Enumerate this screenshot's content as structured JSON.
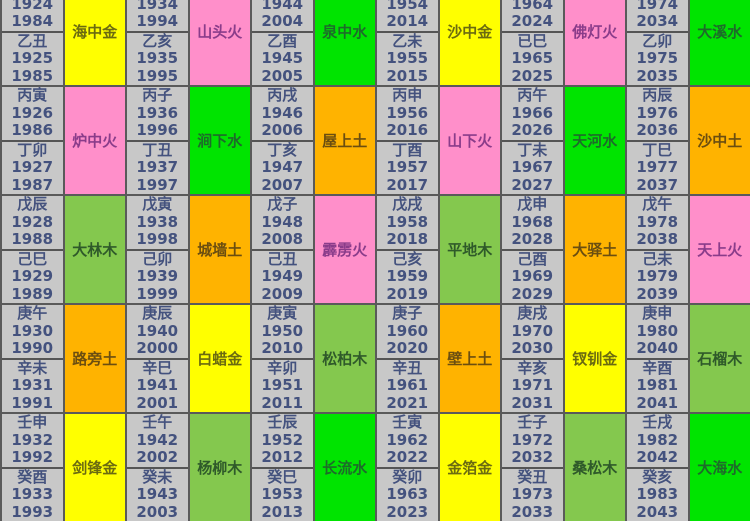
{
  "colors": {
    "金": "#ffff00",
    "火": "#ff8fca",
    "水": "#00e400",
    "土": "#ffb300",
    "木": "#84c84e"
  },
  "text_colors": {
    "金": "#6b6b10",
    "火": "#8a3c8a",
    "水": "#1d6b2a",
    "土": "#6b4e10",
    "木": "#2f5a2a"
  },
  "columns": [
    {
      "blocks": [
        {
          "entries": [
            [
              "甲子",
              "1924",
              "1984"
            ],
            [
              "乙丑",
              "1925",
              "1985"
            ]
          ],
          "nayin": "海中金",
          "element": "金"
        },
        {
          "entries": [
            [
              "丙寅",
              "1926",
              "1986"
            ],
            [
              "丁卯",
              "1927",
              "1987"
            ]
          ],
          "nayin": "炉中火",
          "element": "火"
        },
        {
          "entries": [
            [
              "戊辰",
              "1928",
              "1988"
            ],
            [
              "己巳",
              "1929",
              "1989"
            ]
          ],
          "nayin": "大林木",
          "element": "木"
        },
        {
          "entries": [
            [
              "庚午",
              "1930",
              "1990"
            ],
            [
              "辛未",
              "1931",
              "1991"
            ]
          ],
          "nayin": "路旁土",
          "element": "土"
        },
        {
          "entries": [
            [
              "壬申",
              "1932",
              "1992"
            ],
            [
              "癸酉",
              "1933",
              "1993"
            ]
          ],
          "nayin": "剑锋金",
          "element": "金"
        }
      ]
    },
    {
      "blocks": [
        {
          "entries": [
            [
              "甲戌",
              "1934",
              "1994"
            ],
            [
              "乙亥",
              "1935",
              "1995"
            ]
          ],
          "nayin": "山头火",
          "element": "火"
        },
        {
          "entries": [
            [
              "丙子",
              "1936",
              "1996"
            ],
            [
              "丁丑",
              "1937",
              "1997"
            ]
          ],
          "nayin": "涧下水",
          "element": "水"
        },
        {
          "entries": [
            [
              "戊寅",
              "1938",
              "1998"
            ],
            [
              "己卯",
              "1939",
              "1999"
            ]
          ],
          "nayin": "城墙土",
          "element": "土"
        },
        {
          "entries": [
            [
              "庚辰",
              "1940",
              "2000"
            ],
            [
              "辛巳",
              "1941",
              "2001"
            ]
          ],
          "nayin": "白蜡金",
          "element": "金"
        },
        {
          "entries": [
            [
              "壬午",
              "1942",
              "2002"
            ],
            [
              "癸未",
              "1943",
              "2003"
            ]
          ],
          "nayin": "杨柳木",
          "element": "木"
        }
      ]
    },
    {
      "blocks": [
        {
          "entries": [
            [
              "甲申",
              "1944",
              "2004"
            ],
            [
              "乙酉",
              "1945",
              "2005"
            ]
          ],
          "nayin": "泉中水",
          "element": "水"
        },
        {
          "entries": [
            [
              "丙戌",
              "1946",
              "2006"
            ],
            [
              "丁亥",
              "1947",
              "2007"
            ]
          ],
          "nayin": "屋上土",
          "element": "土"
        },
        {
          "entries": [
            [
              "戊子",
              "1948",
              "2008"
            ],
            [
              "己丑",
              "1949",
              "2009"
            ]
          ],
          "nayin": "霹雳火",
          "element": "火"
        },
        {
          "entries": [
            [
              "庚寅",
              "1950",
              "2010"
            ],
            [
              "辛卯",
              "1951",
              "2011"
            ]
          ],
          "nayin": "松柏木",
          "element": "木"
        },
        {
          "entries": [
            [
              "壬辰",
              "1952",
              "2012"
            ],
            [
              "癸巳",
              "1953",
              "2013"
            ]
          ],
          "nayin": "长流水",
          "element": "水"
        }
      ]
    },
    {
      "blocks": [
        {
          "entries": [
            [
              "甲午",
              "1954",
              "2014"
            ],
            [
              "乙未",
              "1955",
              "2015"
            ]
          ],
          "nayin": "沙中金",
          "element": "金"
        },
        {
          "entries": [
            [
              "丙申",
              "1956",
              "2016"
            ],
            [
              "丁酉",
              "1957",
              "2017"
            ]
          ],
          "nayin": "山下火",
          "element": "火"
        },
        {
          "entries": [
            [
              "戊戌",
              "1958",
              "2018"
            ],
            [
              "己亥",
              "1959",
              "2019"
            ]
          ],
          "nayin": "平地木",
          "element": "木"
        },
        {
          "entries": [
            [
              "庚子",
              "1960",
              "2020"
            ],
            [
              "辛丑",
              "1961",
              "2021"
            ]
          ],
          "nayin": "壁上土",
          "element": "土"
        },
        {
          "entries": [
            [
              "壬寅",
              "1962",
              "2022"
            ],
            [
              "癸卯",
              "1963",
              "2023"
            ]
          ],
          "nayin": "金箔金",
          "element": "金"
        }
      ]
    },
    {
      "blocks": [
        {
          "entries": [
            [
              "甲辰",
              "1964",
              "2024"
            ],
            [
              "已巳",
              "1965",
              "2025"
            ]
          ],
          "nayin": "佛灯火",
          "element": "火"
        },
        {
          "entries": [
            [
              "丙午",
              "1966",
              "2026"
            ],
            [
              "丁未",
              "1967",
              "2027"
            ]
          ],
          "nayin": "天河水",
          "element": "水"
        },
        {
          "entries": [
            [
              "戊申",
              "1968",
              "2028"
            ],
            [
              "己酉",
              "1969",
              "2029"
            ]
          ],
          "nayin": "大驿土",
          "element": "土"
        },
        {
          "entries": [
            [
              "庚戌",
              "1970",
              "2030"
            ],
            [
              "辛亥",
              "1971",
              "2031"
            ]
          ],
          "nayin": "钗钏金",
          "element": "金"
        },
        {
          "entries": [
            [
              "壬子",
              "1972",
              "2032"
            ],
            [
              "癸丑",
              "1973",
              "2033"
            ]
          ],
          "nayin": "桑松木",
          "element": "木"
        }
      ]
    },
    {
      "blocks": [
        {
          "entries": [
            [
              "甲寅",
              "1974",
              "2034"
            ],
            [
              "乙卯",
              "1975",
              "2035"
            ]
          ],
          "nayin": "大溪水",
          "element": "水"
        },
        {
          "entries": [
            [
              "丙辰",
              "1976",
              "2036"
            ],
            [
              "丁巳",
              "1977",
              "2037"
            ]
          ],
          "nayin": "沙中土",
          "element": "土"
        },
        {
          "entries": [
            [
              "戊午",
              "1978",
              "2038"
            ],
            [
              "己未",
              "1979",
              "2039"
            ]
          ],
          "nayin": "天上火",
          "element": "火"
        },
        {
          "entries": [
            [
              "庚申",
              "1980",
              "2040"
            ],
            [
              "辛酉",
              "1981",
              "2041"
            ]
          ],
          "nayin": "石榴木",
          "element": "木"
        },
        {
          "entries": [
            [
              "壬戌",
              "1982",
              "2042"
            ],
            [
              "癸亥",
              "1983",
              "2043"
            ]
          ],
          "nayin": "大海水",
          "element": "水"
        }
      ]
    }
  ]
}
